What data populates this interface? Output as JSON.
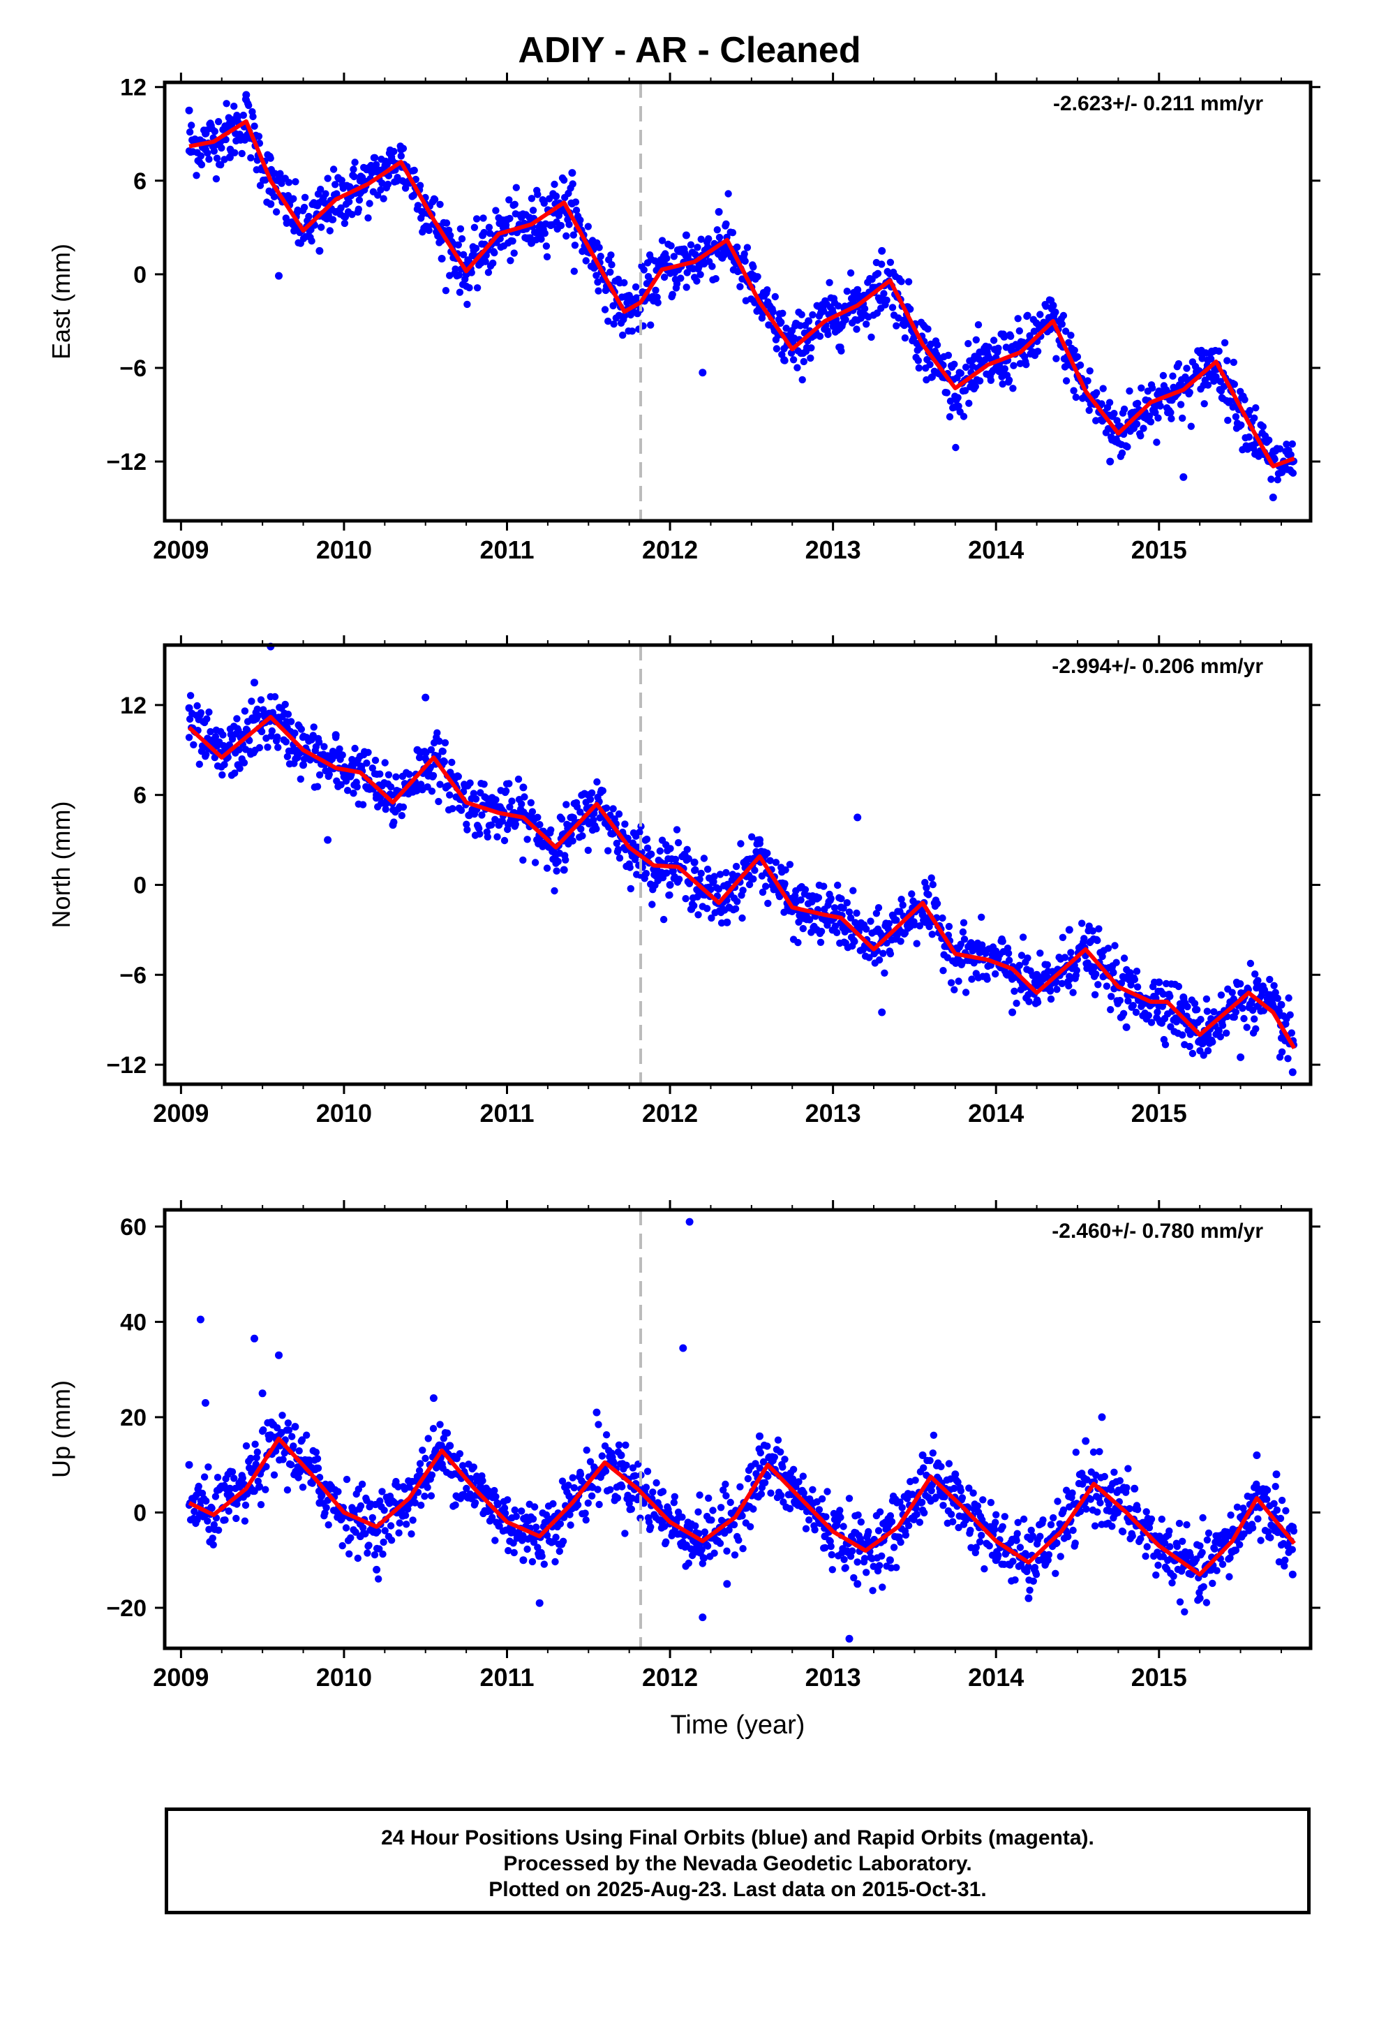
{
  "title": "ADIY  - AR - Cleaned",
  "footer": {
    "line1": "24 Hour Positions Using Final Orbits (blue) and Rapid Orbits (magenta).",
    "line2": "Processed by the Nevada Geodetic Laboratory.",
    "line3": "Plotted on 2025-Aug-23. Last data on 2015-Oct-31."
  },
  "colors": {
    "points": "#0000ff",
    "model": "#ff0000",
    "break_line": "#bbbbbb",
    "axes": "#000000"
  },
  "chart_data": [
    {
      "type": "scatter",
      "ylabel": "East (mm)",
      "xlabel": "",
      "rate_label": "-2.623+/- 0.211 mm/yr",
      "xlim": [
        2008.9,
        2015.93
      ],
      "ylim": [
        -15.8,
        12.3
      ],
      "yticks": [
        12,
        6,
        0,
        -6,
        -12
      ],
      "ytick_labels": [
        "12",
        "6",
        "0",
        "−6",
        "−12"
      ],
      "xticks": [
        2009,
        2010,
        2011,
        2012,
        2013,
        2014,
        2015
      ],
      "xtick_labels": [
        "2009",
        "2010",
        "2011",
        "2012",
        "2013",
        "2014",
        "2015"
      ],
      "break_x": 2011.82,
      "series": [
        {
          "type": "line",
          "x": [
            2009.05,
            2009.2,
            2009.4,
            2009.55,
            2009.75,
            2009.95,
            2010.15,
            2010.35,
            2010.55,
            2010.75,
            2010.95,
            2011.15,
            2011.35,
            2011.55,
            2011.72,
            2011.82,
            2011.95,
            2012.15,
            2012.35,
            2012.55,
            2012.75,
            2012.95,
            2013.15,
            2013.35,
            2013.55,
            2013.75,
            2013.95,
            2014.15,
            2014.35,
            2014.55,
            2014.75,
            2014.95,
            2015.15,
            2015.35,
            2015.55,
            2015.7,
            2015.83
          ],
          "y": [
            8.2,
            8.5,
            9.8,
            6.0,
            2.8,
            4.8,
            5.8,
            7.2,
            3.5,
            0.2,
            2.6,
            3.2,
            4.6,
            0.8,
            -2.4,
            -1.8,
            0.3,
            0.8,
            2.2,
            -1.8,
            -4.8,
            -3.0,
            -2.0,
            -0.4,
            -4.5,
            -7.3,
            -5.8,
            -5.0,
            -3.0,
            -7.5,
            -10.2,
            -8.2,
            -7.4,
            -5.6,
            -9.5,
            -12.3,
            -11.8
          ]
        },
        {
          "type": "scatter",
          "x": [
            2009.05,
            2009.15,
            2009.3,
            2009.4,
            2009.55,
            2009.6,
            2009.7,
            2009.85,
            2009.95,
            2010.1,
            2010.25,
            2010.35,
            2010.5,
            2010.6,
            2010.75,
            2010.85,
            2011.0,
            2011.15,
            2011.3,
            2011.4,
            2011.55,
            2011.65,
            2011.8,
            2012.0,
            2012.1,
            2012.2,
            2012.3,
            2012.5,
            2012.7,
            2012.85,
            2013.0,
            2013.15,
            2013.3,
            2013.45,
            2013.6,
            2013.75,
            2013.9,
            2014.05,
            2014.2,
            2014.35,
            2014.5,
            2014.7,
            2014.85,
            2015.0,
            2015.15,
            2015.3,
            2015.45,
            2015.6,
            2015.7,
            2015.82
          ],
          "y": [
            10.5,
            8.0,
            7.5,
            11.5,
            4.5,
            -0.1,
            3.0,
            1.5,
            4.0,
            6.0,
            6.5,
            8.0,
            4.5,
            1.0,
            0.0,
            2.5,
            3.5,
            2.0,
            5.0,
            6.5,
            2.0,
            -1.0,
            -2.5,
            0.5,
            2.5,
            -6.3,
            4.0,
            0.0,
            -5.5,
            -3.0,
            -2.5,
            -1.0,
            1.5,
            -3.0,
            -5.0,
            -8.5,
            -5.0,
            -4.0,
            -4.5,
            -2.0,
            -6.5,
            -12.0,
            -9.5,
            -7.5,
            -13.0,
            -5.5,
            -7.0,
            -10.5,
            -14.3,
            -12.0
          ]
        }
      ]
    },
    {
      "type": "scatter",
      "ylabel": "North (mm)",
      "xlabel": "",
      "rate_label": "-2.994+/- 0.206 mm/yr",
      "xlim": [
        2008.9,
        2015.93
      ],
      "ylim": [
        -13.3,
        16.0
      ],
      "yticks": [
        12,
        6,
        0,
        -6,
        -12
      ],
      "ytick_labels": [
        "12",
        "6",
        "0",
        "−6",
        "−12"
      ],
      "xticks": [
        2009,
        2010,
        2011,
        2012,
        2013,
        2014,
        2015
      ],
      "xtick_labels": [
        "2009",
        "2010",
        "2011",
        "2012",
        "2013",
        "2014",
        "2015"
      ],
      "break_x": 2011.82,
      "series": [
        {
          "type": "line",
          "x": [
            2009.05,
            2009.25,
            2009.55,
            2009.75,
            2009.95,
            2010.1,
            2010.3,
            2010.55,
            2010.75,
            2010.95,
            2011.1,
            2011.3,
            2011.55,
            2011.75,
            2011.9,
            2012.05,
            2012.3,
            2012.55,
            2012.75,
            2012.95,
            2013.05,
            2013.25,
            2013.55,
            2013.75,
            2013.95,
            2014.1,
            2014.25,
            2014.55,
            2014.75,
            2014.95,
            2015.05,
            2015.25,
            2015.55,
            2015.7,
            2015.83
          ],
          "y": [
            10.5,
            8.5,
            11.2,
            9.0,
            7.8,
            7.5,
            5.5,
            8.5,
            5.5,
            4.8,
            4.5,
            2.5,
            5.4,
            2.5,
            1.3,
            1.2,
            -1.2,
            1.9,
            -1.5,
            -2.0,
            -2.2,
            -4.3,
            -1.2,
            -4.6,
            -5.0,
            -5.6,
            -7.2,
            -4.3,
            -6.8,
            -7.8,
            -7.8,
            -10.0,
            -7.2,
            -8.5,
            -10.9
          ]
        },
        {
          "type": "scatter",
          "x": [
            2009.05,
            2009.2,
            2009.35,
            2009.45,
            2009.55,
            2009.65,
            2009.75,
            2009.9,
            2009.95,
            2010.05,
            2010.2,
            2010.3,
            2010.45,
            2010.5,
            2010.6,
            2010.8,
            2010.95,
            2011.1,
            2011.25,
            2011.35,
            2011.5,
            2011.65,
            2011.8,
            2012.0,
            2012.15,
            2012.35,
            2012.55,
            2012.7,
            2012.9,
            2013.05,
            2013.15,
            2013.3,
            2013.55,
            2013.7,
            2013.9,
            2014.1,
            2014.25,
            2014.45,
            2014.6,
            2014.8,
            2015.0,
            2015.15,
            2015.3,
            2015.5,
            2015.6,
            2015.75,
            2015.82
          ],
          "y": [
            11.8,
            9.5,
            8.0,
            13.5,
            15.9,
            10.5,
            8.0,
            3.0,
            10.0,
            8.0,
            6.0,
            4.0,
            9.0,
            12.5,
            8.0,
            5.0,
            4.0,
            6.5,
            3.0,
            1.0,
            6.0,
            4.0,
            2.5,
            0.0,
            1.5,
            -2.5,
            3.0,
            0.0,
            -3.0,
            -1.5,
            4.5,
            -8.5,
            -2.0,
            -4.0,
            -4.5,
            -8.5,
            -6.0,
            -3.0,
            -5.5,
            -9.5,
            -6.5,
            -7.5,
            -10.0,
            -11.5,
            -6.5,
            -8.0,
            -12.5
          ]
        }
      ]
    },
    {
      "type": "scatter",
      "ylabel": "Up (mm)",
      "xlabel": "Time (year)",
      "rate_label": "-2.460+/- 0.780 mm/yr",
      "xlim": [
        2008.9,
        2015.93
      ],
      "ylim": [
        -28.5,
        63.5
      ],
      "yticks": [
        60,
        40,
        20,
        0,
        -20
      ],
      "ytick_labels": [
        "60",
        "40",
        "20",
        "0",
        "−20"
      ],
      "xticks": [
        2009,
        2010,
        2011,
        2012,
        2013,
        2014,
        2015
      ],
      "xtick_labels": [
        "2009",
        "2010",
        "2011",
        "2012",
        "2013",
        "2014",
        "2015"
      ],
      "break_x": 2011.82,
      "series": [
        {
          "type": "line",
          "x": [
            2009.05,
            2009.2,
            2009.4,
            2009.6,
            2009.8,
            2010.0,
            2010.2,
            2010.4,
            2010.6,
            2010.8,
            2011.0,
            2011.2,
            2011.4,
            2011.6,
            2011.8,
            2012.0,
            2012.2,
            2012.4,
            2012.6,
            2012.8,
            2013.0,
            2013.2,
            2013.4,
            2013.6,
            2013.8,
            2014.0,
            2014.2,
            2014.4,
            2014.6,
            2014.8,
            2015.0,
            2015.25,
            2015.45,
            2015.6,
            2015.83
          ],
          "y": [
            2.0,
            -0.5,
            5.0,
            15.5,
            8.0,
            0.0,
            -3.0,
            3.0,
            13.0,
            5.0,
            -2.0,
            -5.0,
            2.0,
            10.5,
            5.0,
            -2.0,
            -6.0,
            -1.0,
            10.0,
            3.0,
            -4.0,
            -8.0,
            -3.0,
            7.5,
            1.0,
            -6.0,
            -10.5,
            -4.0,
            6.0,
            0.0,
            -7.0,
            -13.0,
            -6.0,
            3.0,
            -6.5
          ]
        },
        {
          "type": "scatter",
          "x": [
            2009.05,
            2009.12,
            2009.15,
            2009.3,
            2009.45,
            2009.5,
            2009.6,
            2009.7,
            2009.85,
            2010.1,
            2010.2,
            2010.35,
            2010.55,
            2010.65,
            2010.85,
            2011.1,
            2011.2,
            2011.45,
            2011.55,
            2011.7,
            2011.95,
            2012.08,
            2012.12,
            2012.2,
            2012.35,
            2012.55,
            2012.75,
            2012.95,
            2013.1,
            2013.15,
            2013.35,
            2013.55,
            2013.75,
            2014.0,
            2014.2,
            2014.35,
            2014.55,
            2014.65,
            2014.85,
            2015.1,
            2015.25,
            2015.45,
            2015.6,
            2015.72,
            2015.82
          ],
          "y": [
            10.0,
            40.5,
            23.0,
            5.0,
            36.5,
            25.0,
            33.0,
            18.0,
            2.0,
            -5.0,
            -12.0,
            0.0,
            24.0,
            14.0,
            3.0,
            -10.0,
            -19.0,
            8.0,
            21.0,
            12.0,
            0.0,
            34.5,
            61.0,
            -22.0,
            -15.0,
            16.0,
            5.0,
            -5.0,
            -26.5,
            -15.0,
            -10.0,
            12.0,
            8.0,
            -10.0,
            -18.0,
            -5.0,
            15.0,
            20.0,
            5.0,
            -10.0,
            -18.0,
            -5.0,
            12.0,
            8.0,
            -13.0
          ]
        }
      ]
    }
  ]
}
